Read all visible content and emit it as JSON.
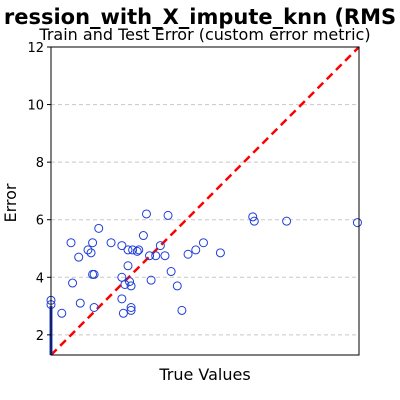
{
  "chart_data": {
    "type": "scatter",
    "title": "ression_with_X_impute_knn (RMS",
    "subtitle": "Train and Test Error (custom error metric)",
    "xlabel": "True Values",
    "ylabel": "Error",
    "xlim": [
      0,
      1
    ],
    "ylim": [
      1.3,
      12
    ],
    "yticks": [
      2,
      4,
      6,
      8,
      10,
      12
    ],
    "grid": "horizontal dashed",
    "marker_color": "#1f3fd6",
    "reference_line": {
      "color": "#ff0000",
      "style": "dashed",
      "from": [
        0,
        1.3
      ],
      "to": [
        1,
        12
      ]
    },
    "series": [
      {
        "x": [
          0.0,
          0.0,
          0.035,
          0.065,
          0.07,
          0.09,
          0.095,
          0.12,
          0.13,
          0.135,
          0.135,
          0.14,
          0.14,
          0.155,
          0.195,
          0.23,
          0.23,
          0.23,
          0.235,
          0.24,
          0.25,
          0.25,
          0.255,
          0.26,
          0.26,
          0.26,
          0.265,
          0.28,
          0.285,
          0.3,
          0.31,
          0.32,
          0.325,
          0.34,
          0.355,
          0.37,
          0.38,
          0.39,
          0.41,
          0.425,
          0.445,
          0.47,
          0.495,
          0.55,
          0.655,
          0.66,
          0.765,
          0.995
        ],
        "y": [
          3.2,
          3.05,
          2.75,
          5.2,
          3.8,
          4.7,
          3.1,
          4.95,
          4.85,
          5.2,
          4.1,
          4.1,
          2.95,
          5.7,
          5.2,
          5.1,
          4.0,
          3.25,
          2.75,
          3.75,
          4.4,
          4.95,
          3.85,
          3.7,
          2.95,
          2.85,
          4.95,
          4.9,
          4.95,
          5.45,
          6.2,
          4.75,
          3.9,
          4.75,
          5.1,
          4.75,
          6.15,
          4.2,
          3.7,
          2.85,
          4.8,
          4.95,
          5.2,
          4.85,
          6.1,
          5.95,
          5.95,
          5.9
        ]
      }
    ]
  }
}
